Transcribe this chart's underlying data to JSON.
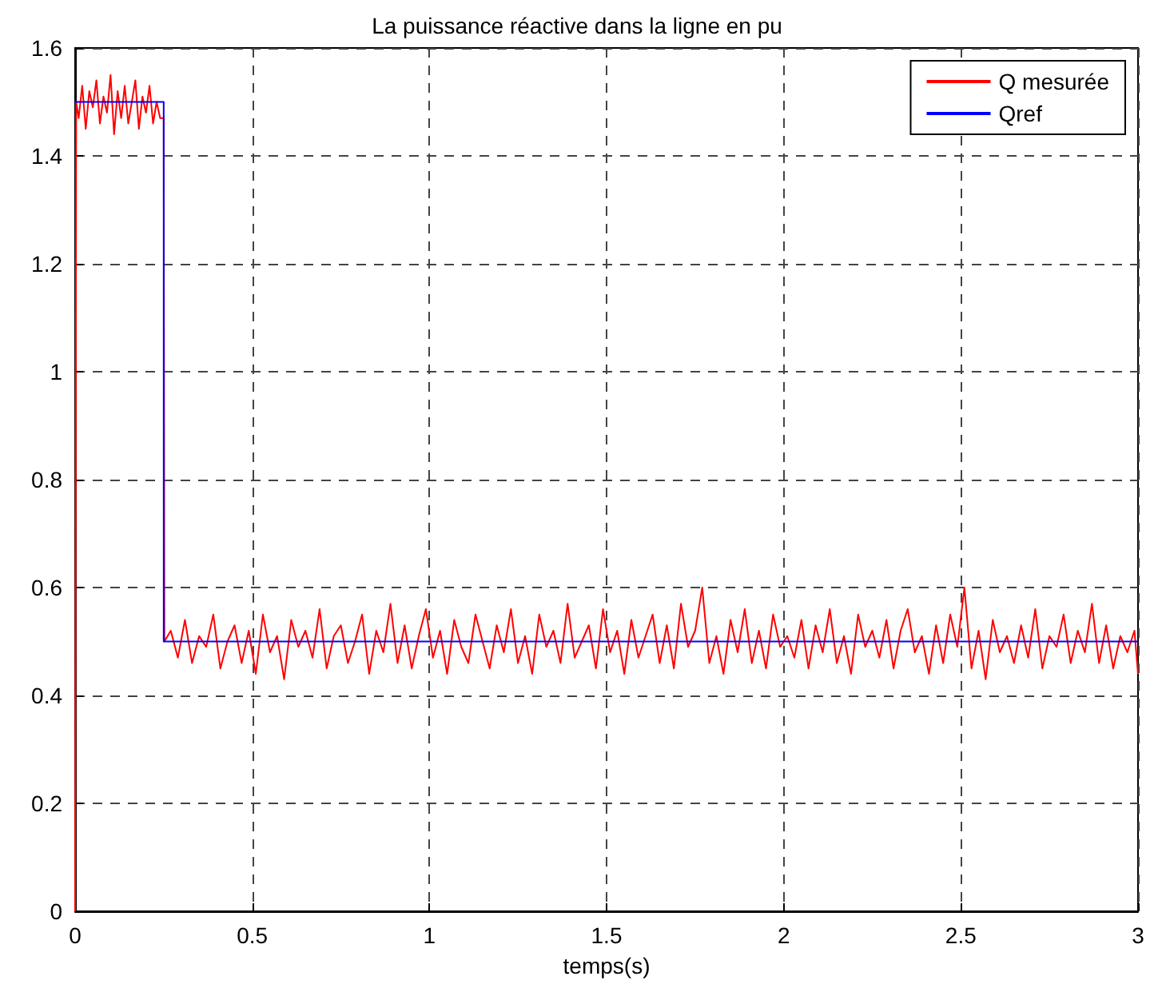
{
  "chart_data": {
    "type": "line",
    "title": "La puissance réactive dans la ligne en pu",
    "xlabel": "temps(s)",
    "xlim": [
      0,
      3
    ],
    "xticks": [
      0,
      0.5,
      1,
      1.5,
      2,
      2.5,
      3
    ],
    "ylim": [
      0,
      1.6
    ],
    "yticks": [
      0,
      0.2,
      0.4,
      0.6,
      0.8,
      1,
      1.2,
      1.4,
      1.6
    ],
    "grid": true,
    "legend": "top right",
    "marker": "none",
    "line_style": "solid",
    "series": [
      {
        "name": "Q mesurée",
        "color": "#ff0000",
        "x": [
          0,
          0.003,
          0.01,
          0.02,
          0.03,
          0.04,
          0.05,
          0.06,
          0.07,
          0.08,
          0.09,
          0.1,
          0.11,
          0.12,
          0.13,
          0.14,
          0.15,
          0.16,
          0.17,
          0.18,
          0.19,
          0.2,
          0.21,
          0.22,
          0.23,
          0.24,
          0.25,
          0.252,
          0.27,
          0.29,
          0.31,
          0.33,
          0.35,
          0.37,
          0.39,
          0.41,
          0.43,
          0.45,
          0.47,
          0.49,
          0.51,
          0.53,
          0.55,
          0.57,
          0.59,
          0.61,
          0.63,
          0.65,
          0.67,
          0.69,
          0.71,
          0.73,
          0.75,
          0.77,
          0.79,
          0.81,
          0.83,
          0.85,
          0.87,
          0.89,
          0.91,
          0.93,
          0.95,
          0.97,
          0.99,
          1.01,
          1.03,
          1.05,
          1.07,
          1.09,
          1.11,
          1.13,
          1.15,
          1.17,
          1.19,
          1.21,
          1.23,
          1.25,
          1.27,
          1.29,
          1.31,
          1.33,
          1.35,
          1.37,
          1.39,
          1.41,
          1.43,
          1.45,
          1.47,
          1.49,
          1.51,
          1.53,
          1.55,
          1.57,
          1.59,
          1.61,
          1.63,
          1.65,
          1.67,
          1.69,
          1.71,
          1.73,
          1.75,
          1.77,
          1.79,
          1.81,
          1.83,
          1.85,
          1.87,
          1.89,
          1.91,
          1.93,
          1.95,
          1.97,
          1.99,
          2.01,
          2.03,
          2.05,
          2.07,
          2.09,
          2.11,
          2.13,
          2.15,
          2.17,
          2.19,
          2.21,
          2.23,
          2.25,
          2.27,
          2.29,
          2.31,
          2.33,
          2.35,
          2.37,
          2.39,
          2.41,
          2.43,
          2.45,
          2.47,
          2.49,
          2.51,
          2.53,
          2.55,
          2.57,
          2.59,
          2.61,
          2.63,
          2.65,
          2.67,
          2.69,
          2.71,
          2.73,
          2.75,
          2.77,
          2.79,
          2.81,
          2.83,
          2.85,
          2.87,
          2.89,
          2.91,
          2.93,
          2.95,
          2.97,
          2.99,
          3
        ],
        "values": [
          0,
          1.5,
          1.47,
          1.53,
          1.45,
          1.52,
          1.49,
          1.54,
          1.46,
          1.51,
          1.48,
          1.55,
          1.44,
          1.52,
          1.47,
          1.53,
          1.46,
          1.5,
          1.54,
          1.45,
          1.51,
          1.48,
          1.53,
          1.46,
          1.5,
          1.47,
          1.47,
          0.5,
          0.52,
          0.47,
          0.54,
          0.46,
          0.51,
          0.49,
          0.55,
          0.45,
          0.5,
          0.53,
          0.46,
          0.52,
          0.44,
          0.55,
          0.48,
          0.51,
          0.43,
          0.54,
          0.49,
          0.52,
          0.47,
          0.56,
          0.45,
          0.51,
          0.53,
          0.46,
          0.5,
          0.55,
          0.44,
          0.52,
          0.48,
          0.57,
          0.46,
          0.53,
          0.45,
          0.51,
          0.56,
          0.47,
          0.52,
          0.44,
          0.54,
          0.49,
          0.46,
          0.55,
          0.5,
          0.45,
          0.53,
          0.48,
          0.56,
          0.46,
          0.51,
          0.44,
          0.55,
          0.49,
          0.52,
          0.46,
          0.57,
          0.47,
          0.5,
          0.53,
          0.45,
          0.56,
          0.48,
          0.52,
          0.44,
          0.54,
          0.47,
          0.51,
          0.55,
          0.46,
          0.53,
          0.45,
          0.57,
          0.49,
          0.52,
          0.6,
          0.46,
          0.51,
          0.44,
          0.54,
          0.48,
          0.56,
          0.46,
          0.52,
          0.45,
          0.55,
          0.49,
          0.51,
          0.47,
          0.54,
          0.45,
          0.53,
          0.48,
          0.56,
          0.46,
          0.51,
          0.44,
          0.55,
          0.49,
          0.52,
          0.47,
          0.54,
          0.45,
          0.52,
          0.56,
          0.48,
          0.51,
          0.44,
          0.53,
          0.46,
          0.55,
          0.49,
          0.6,
          0.45,
          0.52,
          0.43,
          0.54,
          0.48,
          0.51,
          0.46,
          0.53,
          0.47,
          0.56,
          0.45,
          0.51,
          0.49,
          0.55,
          0.46,
          0.52,
          0.48,
          0.57,
          0.46,
          0.53,
          0.45,
          0.51,
          0.48,
          0.52,
          0.44
        ]
      },
      {
        "name": "Qref",
        "color": "#0000ff",
        "x": [
          0,
          0.25,
          0.25,
          3
        ],
        "values": [
          1.5,
          1.5,
          0.5,
          0.5
        ]
      }
    ]
  }
}
